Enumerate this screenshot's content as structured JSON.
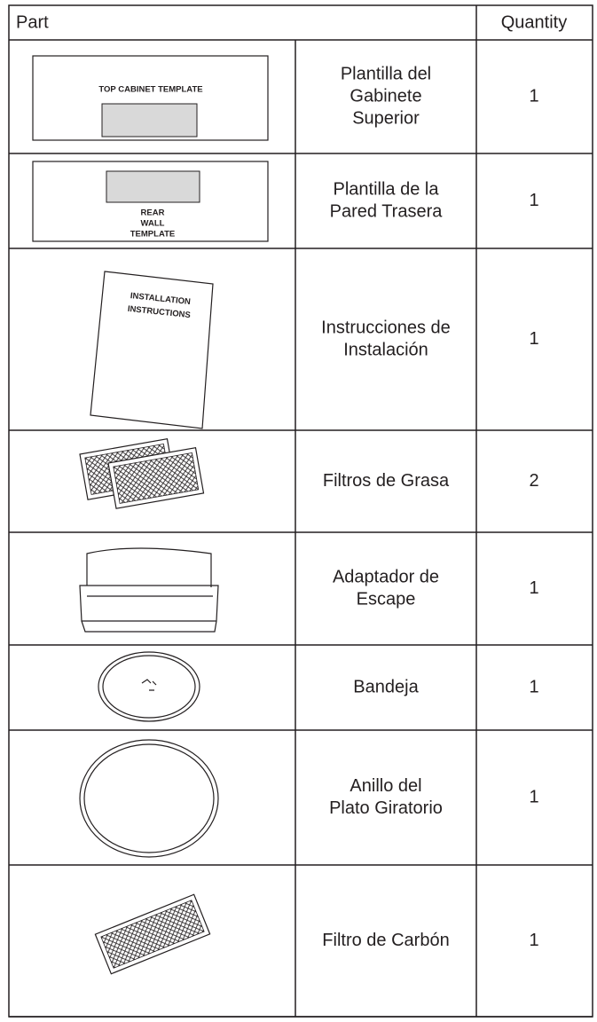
{
  "table": {
    "header": {
      "part": "Part",
      "quantity": "Quantity"
    },
    "rows": [
      {
        "label_lines": [
          "TOP CABINET TEMPLATE"
        ],
        "name_lines": [
          "Plantilla del",
          "Gabinete",
          "Superior"
        ],
        "quantity": 1
      },
      {
        "label_lines": [
          "REAR",
          "WALL",
          "TEMPLATE"
        ],
        "name_lines": [
          "Plantilla de la",
          "Pared Trasera"
        ],
        "quantity": 1
      },
      {
        "label_lines": [
          "INSTALLATION",
          "INSTRUCTIONS"
        ],
        "name_lines": [
          "Instrucciones de",
          "Instalación"
        ],
        "quantity": 1
      },
      {
        "name_lines": [
          "Filtros de Grasa"
        ],
        "quantity": 2
      },
      {
        "name_lines": [
          "Adaptador de",
          "Escape"
        ],
        "quantity": 1
      },
      {
        "name_lines": [
          "Bandeja"
        ],
        "quantity": 1
      },
      {
        "name_lines": [
          "Anillo del",
          "Plato Giratorio"
        ],
        "quantity": 1
      },
      {
        "name_lines": [
          "Filtro de Carbón"
        ],
        "quantity": 1
      }
    ]
  }
}
